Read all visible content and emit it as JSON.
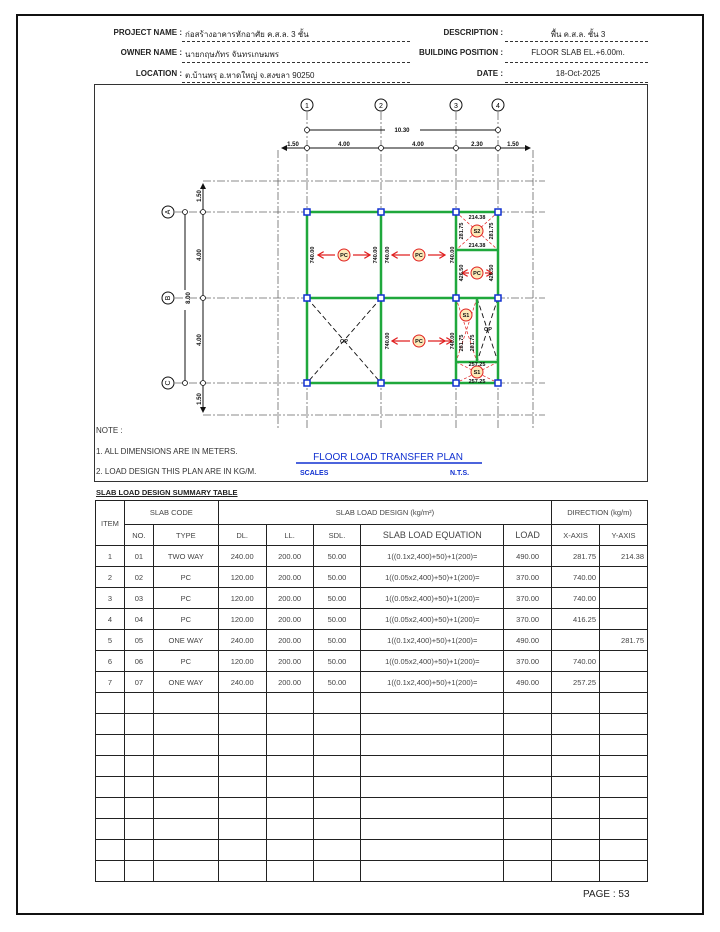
{
  "header": {
    "project_label": "PROJECT NAME :",
    "project_value": "ก่อสร้างอาคารหักอาศัย ค.ส.ล. 3 ชั้น",
    "owner_label": "OWNER NAME :",
    "owner_value": "นายกฤษภัทร จันทรเกษมพร",
    "location_label": "LOCATION :",
    "location_value": "ต.บ้านพรุ อ.หาดใหญ่ จ.สงขลา 90250",
    "description_label": "DESCRIPTION :",
    "description_value": "พื้น ค.ส.ล. ชั้น 3",
    "position_label": "BUILDING POSITION :",
    "position_value": "FLOOR SLAB EL.+6.00m.",
    "date_label": "DATE :",
    "date_value": "18-Oct-2025"
  },
  "plan": {
    "grid_cols": [
      "1",
      "2",
      "3",
      "4"
    ],
    "grid_rows": [
      "A",
      "B",
      "C"
    ],
    "dim_total_x": "10.30",
    "dims_x": [
      "1.50",
      "4.00",
      "4.00",
      "2.30",
      "1.50"
    ],
    "dim_total_y": "8.00",
    "dims_y": [
      "1.50",
      "4.00",
      "4.00",
      "1.50"
    ],
    "slab_pc": "PC",
    "slab_op": "OP",
    "slab_s1": "S1",
    "slab_s2": "S2",
    "v740": "740.00",
    "v214": "214.38",
    "v281": "281.75",
    "v426": "426.50",
    "v257": "257.25",
    "title": "FLOOR LOAD TRANSFER PLAN",
    "scales_label": "SCALES",
    "scales_value": "N.T.S.",
    "colors": {
      "beam": "#1fa83c",
      "arrow": "#e02020",
      "column": "#1030d0"
    }
  },
  "notes": {
    "title": "NOTE :",
    "items": [
      "1. ALL DIMENSIONS ARE IN METERS.",
      "2. LOAD DESIGN  THIS PLAN ARE IN KG/M."
    ]
  },
  "table": {
    "title": "SLAB LOAD DESIGN SUMMARY TABLE",
    "h_item": "ITEM",
    "h_code": "SLAB CODE",
    "h_design": "SLAB LOAD DESIGN (kg/m²)",
    "h_direction": "DIRECTION (kg/m)",
    "h_no": "NO.",
    "h_type": "TYPE",
    "h_dl": "DL.",
    "h_ll": "LL.",
    "h_sdl": "SDL.",
    "h_eq": "SLAB LOAD EQUATION",
    "h_load": "LOAD",
    "h_x": "X-AXIS",
    "h_y": "Y-AXIS",
    "rows": [
      [
        "1",
        "01",
        "TWO WAY",
        "240.00",
        "200.00",
        "50.00",
        "1((0.1x2,400)+50)+1(200)=",
        "490.00",
        "281.75",
        "214.38"
      ],
      [
        "2",
        "02",
        "PC",
        "120.00",
        "200.00",
        "50.00",
        "1((0.05x2,400)+50)+1(200)=",
        "370.00",
        "740.00",
        ""
      ],
      [
        "3",
        "03",
        "PC",
        "120.00",
        "200.00",
        "50.00",
        "1((0.05x2,400)+50)+1(200)=",
        "370.00",
        "740.00",
        ""
      ],
      [
        "4",
        "04",
        "PC",
        "120.00",
        "200.00",
        "50.00",
        "1((0.05x2,400)+50)+1(200)=",
        "370.00",
        "416.25",
        ""
      ],
      [
        "5",
        "05",
        "ONE WAY",
        "240.00",
        "200.00",
        "50.00",
        "1((0.1x2,400)+50)+1(200)=",
        "490.00",
        "",
        "281.75"
      ],
      [
        "6",
        "06",
        "PC",
        "120.00",
        "200.00",
        "50.00",
        "1((0.05x2,400)+50)+1(200)=",
        "370.00",
        "740.00",
        ""
      ],
      [
        "7",
        "07",
        "ONE WAY",
        "240.00",
        "200.00",
        "50.00",
        "1((0.1x2,400)+50)+1(200)=",
        "490.00",
        "257.25",
        ""
      ]
    ]
  },
  "footer": {
    "page": "PAGE : 53"
  }
}
